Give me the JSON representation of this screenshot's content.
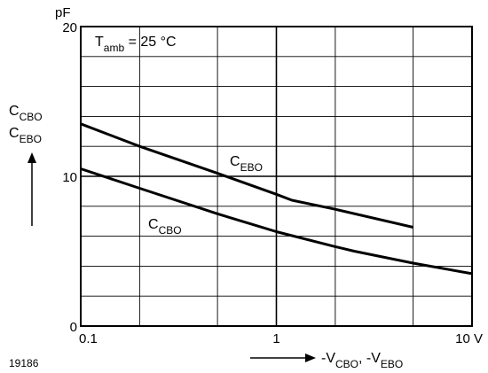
{
  "chart_data": {
    "type": "line",
    "x_scale": "log",
    "xlim": [
      0.1,
      10
    ],
    "ylim": [
      0,
      20
    ],
    "grid": true,
    "x_ticks": [
      {
        "value": 0.1,
        "label": "0.1"
      },
      {
        "value": 1,
        "label": "1"
      },
      {
        "value": 10,
        "label": "10 V"
      }
    ],
    "y_ticks": [
      {
        "value": 0,
        "label": "0"
      },
      {
        "value": 10,
        "label": "10"
      },
      {
        "value": 20,
        "label": "20"
      }
    ],
    "y_unit": "pF",
    "xlabel": "-V CBO, -V EBO",
    "ylabel": "C CBO C EBO",
    "annotation": "T amb = 25 °C",
    "figure_code": "19186",
    "series": [
      {
        "name": "C EBO",
        "x": [
          0.1,
          0.2,
          0.5,
          1.0,
          1.2,
          2.0,
          5.0
        ],
        "y": [
          13.5,
          12.0,
          10.2,
          8.8,
          8.4,
          7.8,
          6.6
        ]
      },
      {
        "name": "C CBO",
        "x": [
          0.1,
          0.2,
          0.5,
          1.0,
          2.0,
          2.5,
          5.0,
          10.0
        ],
        "y": [
          10.5,
          9.2,
          7.5,
          6.3,
          5.3,
          5.0,
          4.2,
          3.5
        ]
      }
    ]
  }
}
